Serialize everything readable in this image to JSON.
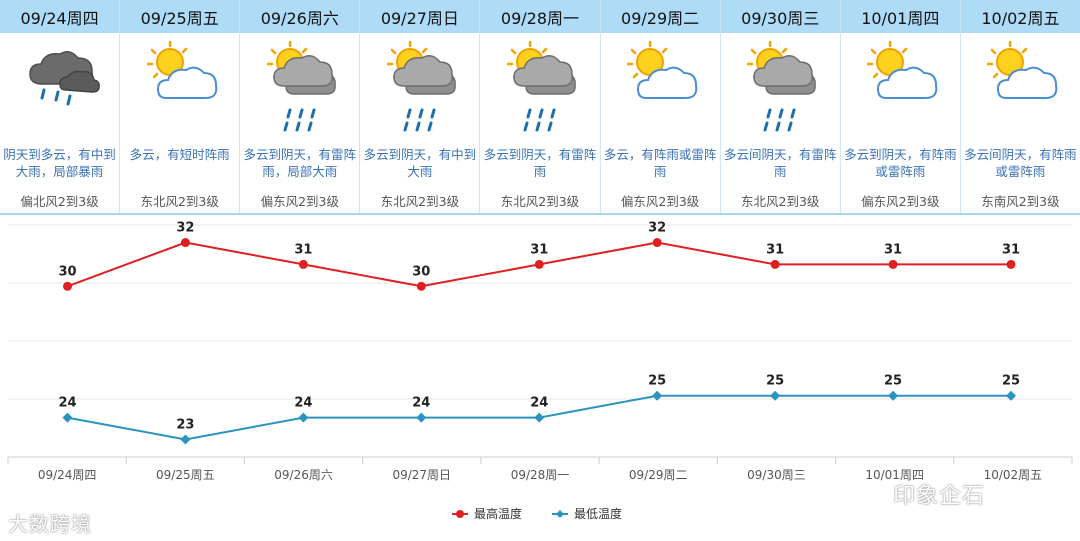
{
  "days": [
    {
      "date": "09/24周四",
      "icon": "thunderstorm-cloud-icon",
      "icon_type": "storm",
      "desc": "阴天到多云，有中到大雨，局部暴雨",
      "wind": "偏北风2到3级"
    },
    {
      "date": "09/25周五",
      "icon": "sun-cloud-icon",
      "icon_type": "suncloud",
      "desc": "多云，有短时阵雨",
      "wind": "东北风2到3级"
    },
    {
      "date": "09/26周六",
      "icon": "sun-rain-cloud-icon",
      "icon_type": "sunrain",
      "desc": "多云到阴天，有雷阵雨，局部大雨",
      "wind": "偏东风2到3级"
    },
    {
      "date": "09/27周日",
      "icon": "sun-rain-cloud-icon",
      "icon_type": "sunrain",
      "desc": "多云到阴天，有中到大雨",
      "wind": "东北风2到3级"
    },
    {
      "date": "09/28周一",
      "icon": "sun-rain-cloud-icon",
      "icon_type": "sunrain",
      "desc": "多云到阴天，有雷阵雨",
      "wind": "东北风2到3级"
    },
    {
      "date": "09/29周二",
      "icon": "sun-cloud-icon",
      "icon_type": "suncloud",
      "desc": "多云，有阵雨或雷阵雨",
      "wind": "偏东风2到3级"
    },
    {
      "date": "09/30周三",
      "icon": "sun-rain-cloud-icon",
      "icon_type": "sunrain",
      "desc": "多云间阴天，有雷阵雨",
      "wind": "东北风2到3级"
    },
    {
      "date": "10/01周四",
      "icon": "sun-cloud-icon",
      "icon_type": "suncloud",
      "desc": "多云到阴天，有阵雨或雷阵雨",
      "wind": "偏东风2到3级"
    },
    {
      "date": "10/02周五",
      "icon": "sun-cloud-icon",
      "icon_type": "suncloud",
      "desc": "多云间阴天，有阵雨或雷阵雨",
      "wind": "东南风2到3级"
    }
  ],
  "chart_data": {
    "type": "line",
    "categories": [
      "09/24周四",
      "09/25周五",
      "09/26周六",
      "09/27周日",
      "09/28周一",
      "09/29周二",
      "09/30周三",
      "10/01周四",
      "10/02周五"
    ],
    "series": [
      {
        "name": "最高温度",
        "color": "#e02020",
        "marker": "circle",
        "values": [
          30,
          32,
          31,
          30,
          31,
          32,
          31,
          31,
          31
        ]
      },
      {
        "name": "最低温度",
        "color": "#2a93bf",
        "marker": "diamond",
        "values": [
          24,
          23,
          24,
          24,
          24,
          25,
          25,
          25,
          25
        ]
      }
    ],
    "ylim": [
      22.2,
      32.8
    ],
    "grid": true,
    "legend": "bottom-center"
  },
  "watermarks": {
    "left": "大数跨境",
    "right": "印象企石"
  }
}
